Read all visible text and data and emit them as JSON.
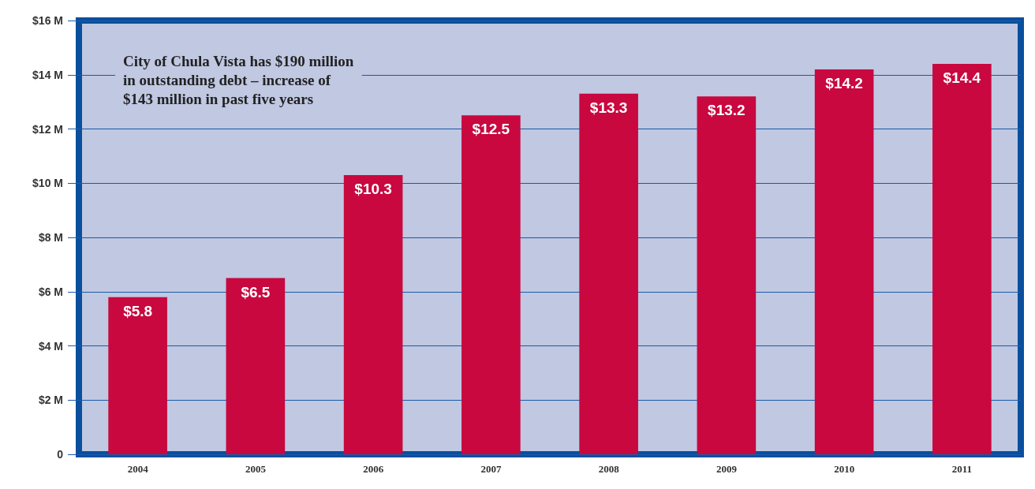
{
  "chart_data": {
    "type": "bar",
    "categories": [
      "2004",
      "2005",
      "2006",
      "2007",
      "2008",
      "2009",
      "2010",
      "2011"
    ],
    "values": [
      5.8,
      6.5,
      10.3,
      12.5,
      13.3,
      13.2,
      14.2,
      14.4
    ],
    "value_labels": [
      "$5.8",
      "$6.5",
      "$10.3",
      "$12.5",
      "$13.3",
      "$13.2",
      "$14.2",
      "$14.4"
    ],
    "color": "#c8083f",
    "ylim": [
      0,
      16
    ],
    "yticks": [
      0,
      {
        "value": 2,
        "label": "$2 M"
      },
      {
        "value": 4,
        "label": "$4 M"
      },
      {
        "value": 6,
        "label": "$6 M"
      },
      {
        "value": 8,
        "label": "$8 M"
      },
      {
        "value": 10,
        "label": "$10 M"
      },
      {
        "value": 12,
        "label": "$12 M"
      },
      {
        "value": 14,
        "label": "$14 M"
      },
      {
        "value": 16,
        "label": "$16 M"
      }
    ],
    "grid": "y",
    "annotations": [
      "City of Chula Vista has $190 million\nin outstanding debt – increase of\n$143 million in past five years"
    ]
  }
}
